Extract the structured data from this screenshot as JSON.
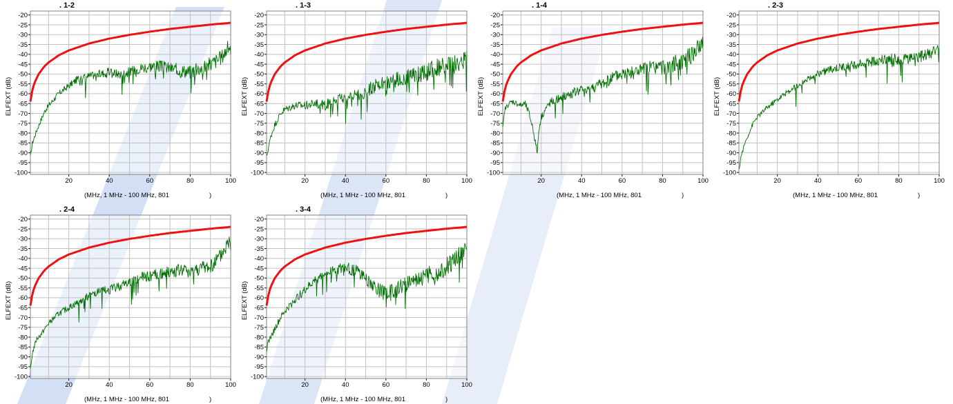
{
  "colors": {
    "limit": "#ee1111",
    "measured": "#006e00",
    "grid": "#c0c0c0",
    "axis": "#000000",
    "background": "#ffffff",
    "watermark": "#7fa3e0"
  },
  "charts": [
    {
      "title": ". 1-2",
      "ylabel": "ELFEXT (dB)",
      "xlabel_text": "(MHz, 1 MHz - 100 MHz, 801",
      "xlabel_close": ")",
      "yticks": [
        "-20",
        "-25",
        "-30",
        "-35",
        "-40",
        "-45",
        "-50",
        "-55",
        "-60",
        "-65",
        "-70",
        "-75",
        "-80",
        "-85",
        "-90",
        "-95",
        "-100"
      ],
      "xticks": [
        "20",
        "40",
        "60",
        "80",
        "100"
      ]
    },
    {
      "title": ". 1-3",
      "ylabel": "ELFEXT (dB)",
      "xlabel_text": "(MHz, 1 MHz - 100 MHz, 801",
      "xlabel_close": ")",
      "yticks": [
        "-20",
        "-25",
        "-30",
        "-35",
        "-40",
        "-45",
        "-50",
        "-55",
        "-60",
        "-65",
        "-70",
        "-75",
        "-80",
        "-85",
        "-90",
        "-95",
        "-100"
      ],
      "xticks": [
        "20",
        "40",
        "60",
        "80",
        "100"
      ]
    },
    {
      "title": ". 1-4",
      "ylabel": "ELFEXT (dB)",
      "xlabel_text": "(MHz, 1 MHz - 100 MHz, 801",
      "xlabel_close": ")",
      "yticks": [
        "-20",
        "-25",
        "-30",
        "-35",
        "-40",
        "-45",
        "-50",
        "-55",
        "-60",
        "-65",
        "-70",
        "-75",
        "-80",
        "-85",
        "-90",
        "-95",
        "-100"
      ],
      "xticks": [
        "20",
        "40",
        "60",
        "80",
        "100"
      ]
    },
    {
      "title": ". 2-3",
      "ylabel": "ELFEXT (dB)",
      "xlabel_text": "(MHz, 1 MHz - 100 MHz, 801",
      "xlabel_close": ")",
      "yticks": [
        "-20",
        "-25",
        "-30",
        "-35",
        "-40",
        "-45",
        "-50",
        "-55",
        "-60",
        "-65",
        "-70",
        "-75",
        "-80",
        "-85",
        "-90",
        "-95",
        "-100"
      ],
      "xticks": [
        "20",
        "40",
        "60",
        "80",
        "100"
      ]
    },
    {
      "title": ". 2-4",
      "ylabel": "ELFEXT (dB)",
      "xlabel_text": "(MHz, 1 MHz - 100 MHz, 801",
      "xlabel_close": ")",
      "yticks": [
        "-20",
        "-25",
        "-30",
        "-35",
        "-40",
        "-45",
        "-50",
        "-55",
        "-60",
        "-65",
        "-70",
        "-75",
        "-80",
        "-85",
        "-90",
        "-95",
        "-100"
      ],
      "xticks": [
        "20",
        "40",
        "60",
        "80",
        "100"
      ]
    },
    {
      "title": ". 3-4",
      "ylabel": "ELFEXT (dB)",
      "xlabel_text": "(MHz, 1 MHz - 100 MHz, 801",
      "xlabel_close": ")",
      "yticks": [
        "-20",
        "-25",
        "-30",
        "-35",
        "-40",
        "-45",
        "-50",
        "-55",
        "-60",
        "-65",
        "-70",
        "-75",
        "-80",
        "-85",
        "-90",
        "-95",
        "-100"
      ],
      "xticks": [
        "20",
        "40",
        "60",
        "80",
        "100"
      ]
    }
  ],
  "chart_data": [
    {
      "type": "line",
      "title": ". 1-2",
      "ylabel": "ELFEXT (dB)",
      "xlim": [
        1,
        100
      ],
      "ylim": [
        -101,
        -18
      ],
      "grid": true,
      "series": [
        {
          "name": "",
          "role": "limit",
          "color": "#ee1111",
          "x": [
            1,
            2,
            3,
            5,
            8,
            10,
            15,
            20,
            30,
            40,
            50,
            60,
            70,
            80,
            90,
            100
          ],
          "y": [
            -64,
            -58,
            -54.5,
            -50.1,
            -46,
            -44.1,
            -40.5,
            -38,
            -34.5,
            -32,
            -30.1,
            -28.5,
            -27.1,
            -26,
            -24.9,
            -24
          ]
        },
        {
          "name": "",
          "role": "measured",
          "color": "#006e00",
          "noise": 3,
          "x": [
            1,
            2,
            4,
            6,
            8,
            10,
            15,
            20,
            25,
            30,
            35,
            40,
            45,
            50,
            55,
            60,
            65,
            70,
            75,
            80,
            85,
            90,
            95,
            100
          ],
          "y": [
            -92,
            -85,
            -79,
            -74,
            -69,
            -66,
            -60,
            -56,
            -52,
            -51,
            -50,
            -49,
            -50,
            -49,
            -47,
            -46,
            -46,
            -47,
            -48,
            -49,
            -47,
            -45,
            -42,
            -35
          ]
        }
      ]
    },
    {
      "type": "line",
      "title": ". 1-3",
      "ylabel": "ELFEXT (dB)",
      "xlim": [
        1,
        100
      ],
      "ylim": [
        -101,
        -18
      ],
      "grid": true,
      "series": [
        {
          "name": "",
          "role": "limit",
          "color": "#ee1111",
          "x": [
            1,
            2,
            3,
            5,
            8,
            10,
            15,
            20,
            30,
            40,
            50,
            60,
            70,
            80,
            90,
            100
          ],
          "y": [
            -64,
            -58,
            -54.5,
            -50.1,
            -46,
            -44.1,
            -40.5,
            -38,
            -34.5,
            -32,
            -30.1,
            -28.5,
            -27.1,
            -26,
            -24.9,
            -24
          ]
        },
        {
          "name": "",
          "role": "measured",
          "color": "#006e00",
          "noise": 4,
          "x": [
            1,
            3,
            5,
            8,
            10,
            15,
            20,
            25,
            30,
            35,
            40,
            45,
            50,
            55,
            60,
            65,
            70,
            75,
            80,
            85,
            90,
            95,
            100
          ],
          "y": [
            -92,
            -82,
            -76,
            -70,
            -68,
            -66,
            -66,
            -65,
            -66,
            -63,
            -62,
            -61,
            -59,
            -56,
            -55,
            -53,
            -52,
            -51,
            -49,
            -47,
            -46,
            -45,
            -42
          ]
        }
      ]
    },
    {
      "type": "line",
      "title": ". 1-4",
      "ylabel": "ELFEXT (dB)",
      "xlim": [
        1,
        100
      ],
      "ylim": [
        -101,
        -18
      ],
      "grid": true,
      "series": [
        {
          "name": "",
          "role": "limit",
          "color": "#ee1111",
          "x": [
            1,
            2,
            3,
            5,
            8,
            10,
            15,
            20,
            30,
            40,
            50,
            60,
            70,
            80,
            90,
            100
          ],
          "y": [
            -64,
            -58,
            -54.5,
            -50.1,
            -46,
            -44.1,
            -40.5,
            -38,
            -34.5,
            -32,
            -30.1,
            -28.5,
            -27.1,
            -26,
            -24.9,
            -24
          ]
        },
        {
          "name": "",
          "role": "measured",
          "color": "#006e00",
          "noise": 3.5,
          "x": [
            1,
            2,
            4,
            6,
            8,
            10,
            12,
            14,
            16,
            17,
            18,
            19,
            20,
            22,
            25,
            30,
            35,
            40,
            45,
            50,
            55,
            60,
            65,
            70,
            75,
            80,
            85,
            90,
            95,
            100
          ],
          "y": [
            -78,
            -68,
            -65,
            -64,
            -65,
            -66,
            -65,
            -70,
            -78,
            -84,
            -90,
            -77,
            -72,
            -68,
            -64,
            -62,
            -60,
            -58,
            -57,
            -55,
            -52,
            -50,
            -49,
            -48,
            -47,
            -47,
            -45,
            -43,
            -40,
            -34
          ]
        }
      ]
    },
    {
      "type": "line",
      "title": ". 2-3",
      "ylabel": "ELFEXT (dB)",
      "xlim": [
        1,
        100
      ],
      "ylim": [
        -101,
        -18
      ],
      "grid": true,
      "series": [
        {
          "name": "",
          "role": "limit",
          "color": "#ee1111",
          "x": [
            1,
            2,
            3,
            5,
            8,
            10,
            15,
            20,
            30,
            40,
            50,
            60,
            70,
            80,
            90,
            100
          ],
          "y": [
            -64,
            -58,
            -54.5,
            -50.1,
            -46,
            -44.1,
            -40.5,
            -38,
            -34.5,
            -32,
            -30.1,
            -28.5,
            -27.1,
            -26,
            -24.9,
            -24
          ]
        },
        {
          "name": "",
          "role": "measured",
          "color": "#006e00",
          "noise": 2.5,
          "x": [
            1,
            2,
            4,
            6,
            8,
            10,
            15,
            20,
            25,
            30,
            35,
            40,
            45,
            50,
            55,
            60,
            65,
            70,
            75,
            80,
            85,
            90,
            95,
            100
          ],
          "y": [
            -99,
            -92,
            -85,
            -80,
            -75,
            -72,
            -67,
            -63,
            -59,
            -56,
            -52,
            -50,
            -48,
            -47,
            -46,
            -45,
            -44,
            -43,
            -42,
            -43,
            -42,
            -41,
            -40,
            -38
          ]
        }
      ]
    },
    {
      "type": "line",
      "title": ". 2-4",
      "ylabel": "ELFEXT (dB)",
      "xlim": [
        1,
        100
      ],
      "ylim": [
        -101,
        -18
      ],
      "grid": true,
      "series": [
        {
          "name": "",
          "role": "limit",
          "color": "#ee1111",
          "x": [
            1,
            2,
            3,
            5,
            8,
            10,
            15,
            20,
            30,
            40,
            50,
            60,
            70,
            80,
            90,
            100
          ],
          "y": [
            -64,
            -58,
            -54.5,
            -50.1,
            -46,
            -44.1,
            -40.5,
            -38,
            -34.5,
            -32,
            -30.1,
            -28.5,
            -27.1,
            -26,
            -24.9,
            -24
          ]
        },
        {
          "name": "",
          "role": "measured",
          "color": "#006e00",
          "noise": 3,
          "x": [
            1,
            2,
            4,
            6,
            8,
            10,
            15,
            20,
            25,
            30,
            35,
            40,
            45,
            50,
            55,
            60,
            65,
            70,
            75,
            80,
            85,
            90,
            95,
            100
          ],
          "y": [
            -97,
            -88,
            -81,
            -79,
            -76,
            -73,
            -68,
            -65,
            -62,
            -59,
            -57,
            -56,
            -54,
            -52,
            -50,
            -49,
            -48,
            -47,
            -46,
            -46,
            -45,
            -44,
            -39,
            -30
          ]
        }
      ]
    },
    {
      "type": "line",
      "title": ". 3-4",
      "ylabel": "ELFEXT (dB)",
      "xlim": [
        1,
        100
      ],
      "ylim": [
        -101,
        -18
      ],
      "grid": true,
      "series": [
        {
          "name": "",
          "role": "limit",
          "color": "#ee1111",
          "x": [
            1,
            2,
            3,
            5,
            8,
            10,
            15,
            20,
            30,
            40,
            50,
            60,
            70,
            80,
            90,
            100
          ],
          "y": [
            -64,
            -58,
            -54.5,
            -50.1,
            -46,
            -44.1,
            -40.5,
            -38,
            -34.5,
            -32,
            -30.1,
            -28.5,
            -27.1,
            -26,
            -24.9,
            -24
          ]
        },
        {
          "name": "",
          "role": "measured",
          "color": "#006e00",
          "noise": 4,
          "x": [
            1,
            2,
            4,
            6,
            8,
            10,
            15,
            20,
            25,
            30,
            35,
            40,
            45,
            50,
            55,
            60,
            65,
            70,
            75,
            80,
            85,
            90,
            95,
            100
          ],
          "y": [
            -86,
            -82,
            -78,
            -74,
            -70,
            -67,
            -61,
            -56,
            -51,
            -48,
            -46,
            -45,
            -46,
            -50,
            -55,
            -58,
            -56,
            -53,
            -50,
            -49,
            -47,
            -44,
            -40,
            -35
          ]
        }
      ]
    }
  ]
}
